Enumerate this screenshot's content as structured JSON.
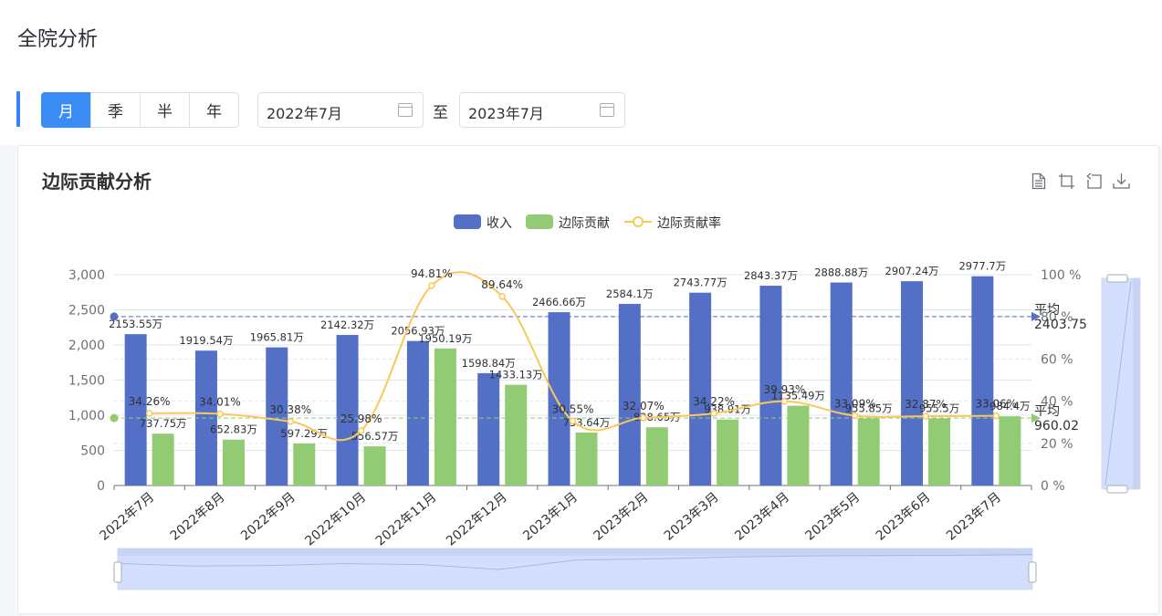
{
  "page": {
    "title": "全院分析"
  },
  "filter": {
    "periods": [
      "月",
      "季",
      "半",
      "年"
    ],
    "active_period": "月",
    "start_date": "2022年7月",
    "separator": "至",
    "end_date": "2023年7月"
  },
  "panel": {
    "title": "边际贡献分析",
    "tools": [
      "data-view-icon",
      "zoom-icon",
      "zoom-reset-icon",
      "download-icon"
    ]
  },
  "colors": {
    "income": "#5470c6",
    "contribution": "#91cc75",
    "rate": "#fac858",
    "accent": "#3b8cf5"
  },
  "chart_data": {
    "type": "bar",
    "categories": [
      "2022年7月",
      "2022年8月",
      "2022年9月",
      "2022年10月",
      "2022年11月",
      "2022年12月",
      "2023年1月",
      "2023年2月",
      "2023年3月",
      "2023年4月",
      "2023年5月",
      "2023年6月",
      "2023年7月"
    ],
    "series": [
      {
        "name": "收入",
        "type": "bar",
        "axis": "left",
        "values": [
          2153.55,
          1919.54,
          1965.81,
          2142.32,
          2056.93,
          1598.84,
          2466.66,
          2584.1,
          2743.77,
          2843.37,
          2888.88,
          2907.24,
          2977.7
        ],
        "labels": [
          "2153.55万",
          "1919.54万",
          "1965.81万",
          "2142.32万",
          "2056.93万",
          "1598.84万",
          "2466.66万",
          "2584.1万",
          "2743.77万",
          "2843.37万",
          "2888.88万",
          "2907.24万",
          "2977.7万"
        ]
      },
      {
        "name": "边际贡献",
        "type": "bar",
        "axis": "left",
        "values": [
          737.75,
          652.83,
          597.29,
          556.57,
          1950.19,
          1433.13,
          753.64,
          828.65,
          938.91,
          1135.49,
          955.85,
          955.5,
          984.4
        ],
        "labels": [
          "737.75万",
          "652.83万",
          "597.29万",
          "556.57万",
          "1950.19万",
          "1433.13万",
          "753.64万",
          "828.65万",
          "938.91万",
          "1135.49万",
          "955.85万",
          "955.5万",
          "984.4万"
        ]
      },
      {
        "name": "边际贡献率",
        "type": "line",
        "axis": "right",
        "values": [
          34.26,
          34.01,
          30.38,
          25.98,
          94.81,
          89.64,
          30.55,
          32.07,
          34.22,
          39.93,
          33.09,
          32.87,
          33.06
        ],
        "labels": [
          "34.26%",
          "34.01%",
          "30.38%",
          "25.98%",
          "94.81%",
          "89.64%",
          "30.55%",
          "32.07%",
          "34.22%",
          "39.93%",
          "33.09%",
          "32.87%",
          "33.06%"
        ]
      }
    ],
    "y_left": {
      "ticks": [
        "0",
        "500",
        "1,000",
        "1,500",
        "2,000",
        "2,500",
        "3,000"
      ],
      "ylim": [
        0,
        3000
      ]
    },
    "y_right": {
      "ticks": [
        "0 %",
        "20 %",
        "40 %",
        "60 %",
        "80 %",
        "100 %"
      ],
      "ylim": [
        0,
        100
      ]
    },
    "mark_lines": [
      {
        "series": "收入",
        "label": "平均",
        "value": 2403.75,
        "value_text": "2403.75"
      },
      {
        "series": "边际贡献",
        "label": "平均",
        "value": 960.02,
        "value_text": "960.02"
      }
    ],
    "legend": {
      "position": "top-center"
    },
    "grid": true,
    "datazoom": {
      "x": true,
      "y": true
    }
  }
}
